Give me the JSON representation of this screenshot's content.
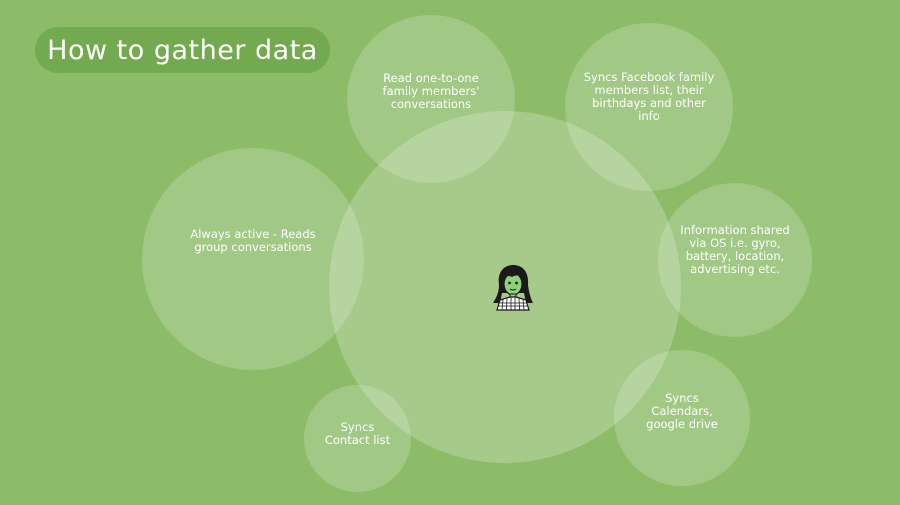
{
  "title": "How to gather data",
  "nodes": {
    "read_one_to_one": "Read one-to-one\nfamily members'\nconversations",
    "syncs_facebook": "Syncs Facebook family\nmembers list, their\nbirthdays and other\ninfo",
    "always_active": "Always active - Reads\ngroup conversations",
    "info_shared_os": "Information shared\nvia OS i.e. gyro,\nbattery, location,\nadvertising etc.",
    "syncs_contacts": "Syncs\nContact list",
    "syncs_calendars": "Syncs\nCalendars,\ngoogle drive"
  },
  "center_icon": "girl-avatar-icon",
  "colors": {
    "background": "#8cbc68",
    "title_pill": "#74aa4f",
    "text": "#ffffff",
    "avatar_outline": "#1a1a1a"
  }
}
